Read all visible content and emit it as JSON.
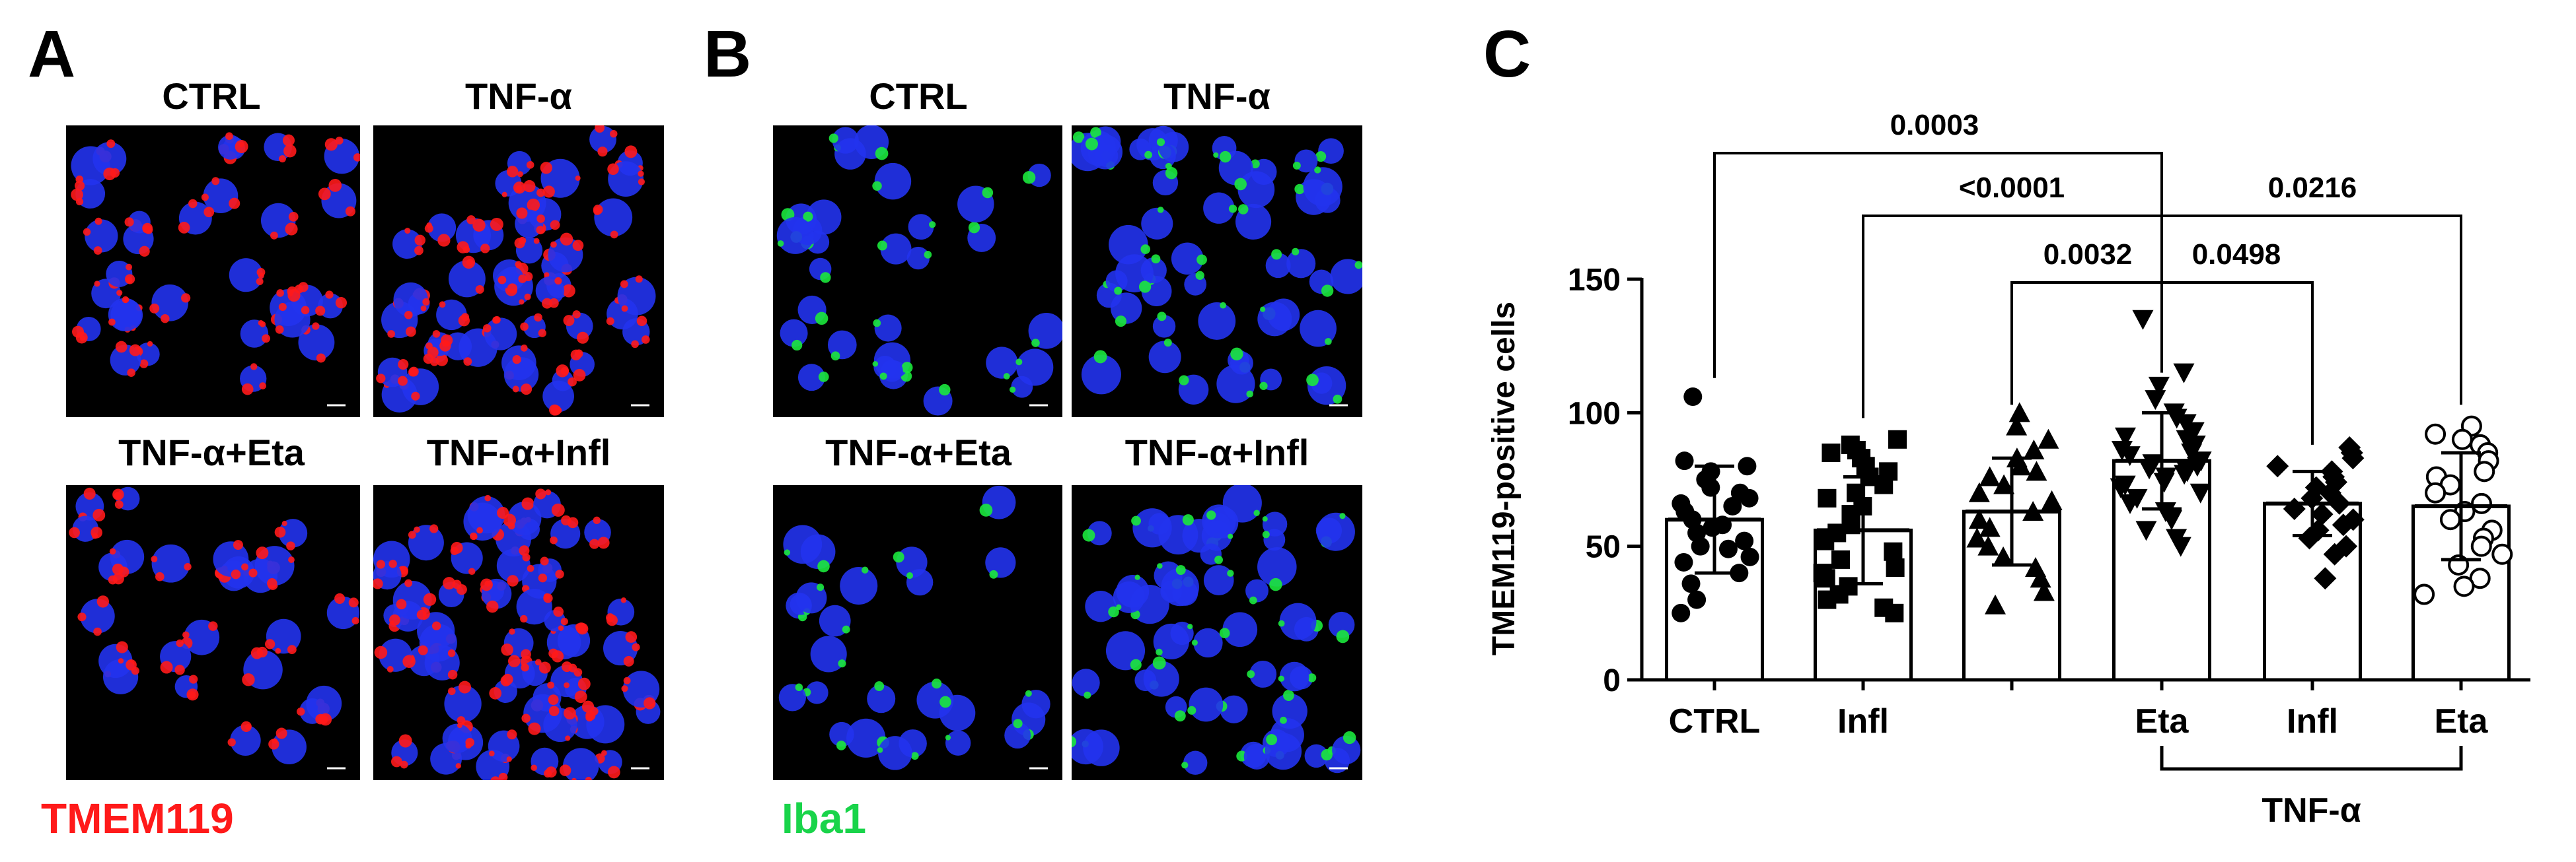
{
  "panels": {
    "a": {
      "letter": "A",
      "stain": "TMEM119",
      "stain_color": "#ff1a1a",
      "titles": [
        "CTRL",
        "TNF-α",
        "TNF-α+Eta",
        "TNF-α+Infl"
      ]
    },
    "b": {
      "letter": "B",
      "stain": "Iba1",
      "stain_color": "#19d44a",
      "titles": [
        "CTRL",
        "TNF-α",
        "TNF-α+Eta",
        "TNF-α+Infl"
      ]
    },
    "c": {
      "letter": "C"
    }
  },
  "colors": {
    "nuclei": "#2233ee",
    "tmem": "#ff1a1a",
    "iba": "#1be83c",
    "background": "#000000"
  },
  "chart_data": {
    "type": "bar",
    "ylabel": "TMEM119-positive cells",
    "ylim": [
      0,
      150
    ],
    "yticks": [
      0,
      50,
      100,
      150
    ],
    "categories": [
      "CTRL",
      "Infl",
      "",
      "Eta",
      "Infl",
      "Eta"
    ],
    "category_order": [
      "CTRL",
      "Infl",
      "Eta",
      "TNF-α",
      "TNF-α+Infl",
      "TNF-α+Eta"
    ],
    "group_label": "TNF-α",
    "group_covers": [
      3,
      4,
      5
    ],
    "means": [
      60,
      56,
      63,
      82,
      66,
      65
    ],
    "sd": [
      20,
      20,
      20,
      18,
      12,
      20
    ],
    "markers": [
      "circle-filled",
      "square-filled",
      "triangle-up-filled",
      "triangle-down-filled",
      "diamond-filled",
      "circle-open"
    ],
    "points": [
      [
        106,
        82,
        80,
        78,
        75,
        72,
        70,
        68,
        66,
        65,
        63,
        60,
        58,
        57,
        55,
        52,
        50,
        49,
        46,
        44,
        40,
        36,
        30,
        25
      ],
      [
        90,
        88,
        86,
        85,
        83,
        80,
        78,
        76,
        73,
        70,
        68,
        65,
        62,
        58,
        55,
        52,
        48,
        45,
        42,
        40,
        38,
        35,
        32,
        30,
        27,
        25
      ],
      [
        100,
        95,
        90,
        86,
        83,
        80,
        78,
        76,
        73,
        70,
        67,
        63,
        60,
        57,
        53,
        50,
        46,
        42,
        38,
        33,
        28
      ],
      [
        135,
        115,
        110,
        105,
        100,
        98,
        96,
        93,
        91,
        90,
        88,
        86,
        85,
        84,
        82,
        81,
        80,
        79,
        78,
        77,
        76,
        74,
        73,
        72,
        70,
        68,
        66,
        63,
        60,
        56,
        53,
        50
      ],
      [
        87,
        85,
        83,
        80,
        78,
        76,
        74,
        72,
        70,
        68,
        66,
        64,
        62,
        60,
        58,
        56,
        53,
        50,
        47,
        38
      ],
      [
        95,
        92,
        90,
        88,
        85,
        82,
        78,
        76,
        73,
        70,
        66,
        63,
        60,
        56,
        53,
        50,
        47,
        43,
        38,
        35,
        32
      ]
    ],
    "comparisons": [
      {
        "a": 0,
        "b": 3,
        "p": "0.0003"
      },
      {
        "a": 1,
        "b": 3,
        "p": "<0.0001"
      },
      {
        "a": 3,
        "b": 5,
        "p": "0.0216"
      },
      {
        "a": 2,
        "b": 3,
        "p": "0.0032"
      },
      {
        "a": 3,
        "b": 4,
        "p": "0.0498"
      }
    ]
  }
}
